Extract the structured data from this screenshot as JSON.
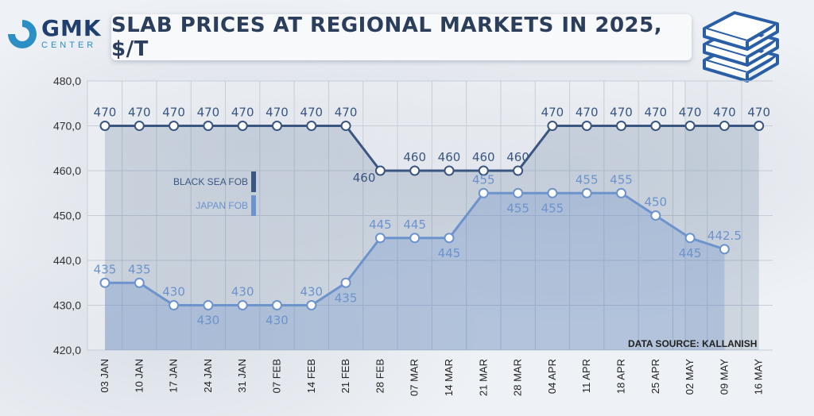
{
  "logo": {
    "main": "GMK",
    "sub": "CENTER"
  },
  "title": "SLAB PRICES AT REGIONAL MARKETS IN 2025, $/T",
  "source": "DATA SOURCE: KALLANISH",
  "colors": {
    "black_sea": "#3a5680",
    "japan": "#6d93cc",
    "grid": "#c7ced8",
    "title": "#2b3e5c"
  },
  "icon": "stacked-books-icon",
  "chart_data": {
    "type": "line",
    "categories": [
      "03 JAN",
      "10 JAN",
      "17 JAN",
      "24 JAN",
      "31 JAN",
      "07 FEB",
      "14 FEB",
      "21 FEB",
      "28 FEB",
      "07 MAR",
      "14 MAR",
      "21 MAR",
      "28 MAR",
      "04 APR",
      "11 APR",
      "18 APR",
      "25 APR",
      "02 MAY",
      "09 MAY",
      "16 MAY"
    ],
    "ylim": [
      420,
      480
    ],
    "yticks": [
      "420,0",
      "430,0",
      "440,0",
      "450,0",
      "460,0",
      "470,0",
      "480,0"
    ],
    "grid": true,
    "legend_placement": "left-center",
    "series": [
      {
        "name": "BLACK SEA FOB",
        "values": [
          470,
          470,
          470,
          470,
          470,
          470,
          470,
          470,
          460,
          460,
          460,
          460,
          460,
          470,
          470,
          470,
          470,
          470,
          470,
          470
        ],
        "labels": [
          "470",
          "470",
          "470",
          "470",
          "470",
          "470",
          "470",
          "470",
          "460",
          "460",
          "460",
          "460",
          "460",
          "470",
          "470",
          "470",
          "470",
          "470",
          "470",
          "470"
        ]
      },
      {
        "name": "JAPAN FOB",
        "values": [
          435,
          435,
          430,
          430,
          430,
          430,
          430,
          435,
          445,
          445,
          445,
          455,
          455,
          455,
          455,
          455,
          450,
          445,
          442.5,
          null
        ],
        "labels": [
          "435",
          "435",
          "430",
          "430",
          "430",
          "430",
          "430",
          "435",
          "445",
          "445",
          "445",
          "455",
          "455",
          "455",
          "455",
          "455",
          "450",
          "445",
          "442.5",
          ""
        ]
      }
    ]
  }
}
